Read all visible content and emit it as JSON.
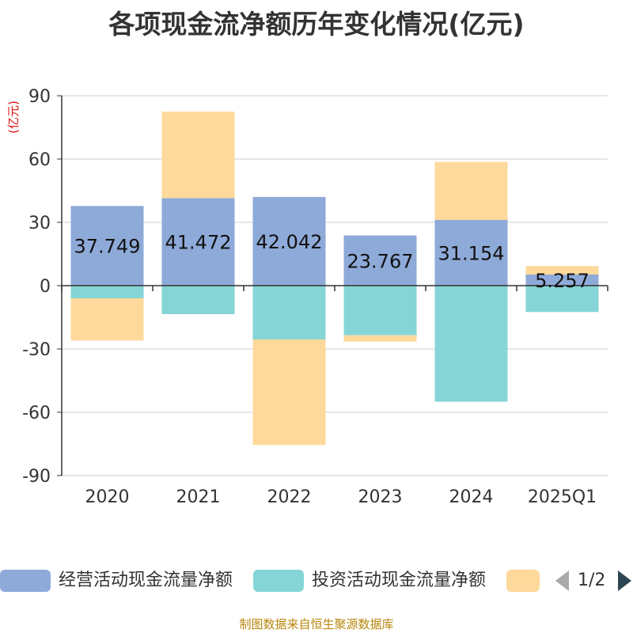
{
  "chart_data": {
    "type": "bar",
    "stacked": true,
    "title": "各项现金流净额历年变化情况(亿元)",
    "ylabel": "(亿元)",
    "xlabel": "",
    "ylim": [
      -90,
      90
    ],
    "yticks": [
      90,
      60,
      30,
      0,
      -30,
      -60,
      -90
    ],
    "categories": [
      "2020",
      "2021",
      "2022",
      "2023",
      "2024",
      "2025Q1"
    ],
    "series": [
      {
        "name": "经营活动现金流量净额",
        "color": "#8eaad8",
        "values": [
          37.749,
          41.472,
          42.042,
          23.767,
          31.154,
          5.257
        ],
        "show_labels": true
      },
      {
        "name": "投资活动现金流量净额",
        "color": "#86d5d6",
        "values": [
          -6,
          -13.5,
          -25.5,
          -23.5,
          -55,
          -12.5
        ],
        "show_labels": false
      },
      {
        "name": "",
        "color": "#fed99b",
        "values": [
          -20,
          41,
          -50,
          -3,
          27.5,
          4
        ],
        "show_labels": false
      }
    ],
    "data_labels": [
      "37.749",
      "41.472",
      "42.042",
      "23.767",
      "31.154",
      "5.257"
    ],
    "legend_position": "bottom"
  },
  "legend": {
    "items": [
      {
        "label": "经营活动现金流量净额",
        "color": "#8eaad8"
      },
      {
        "label": "投资活动现金流量净额",
        "color": "#86d5d6"
      },
      {
        "label": "",
        "color": "#fed99b"
      }
    ],
    "pager": "1/2"
  },
  "source": "制图数据来自恒生聚源数据库"
}
